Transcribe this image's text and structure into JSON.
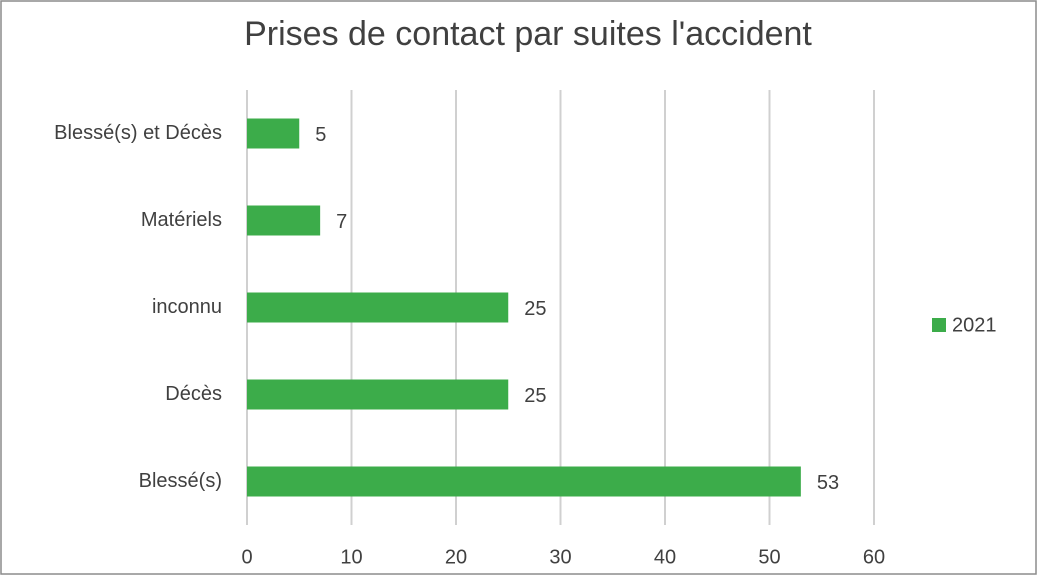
{
  "chart_data": {
    "type": "bar",
    "orientation": "horizontal",
    "title": "Prises de contact par suites l'accident",
    "categories": [
      "Blessé(s) et Décès",
      "Matériels",
      "inconnu",
      "Décès",
      "Blessé(s)"
    ],
    "series": [
      {
        "name": "2021",
        "color": "#3cac4a",
        "values": [
          5,
          7,
          25,
          25,
          53
        ]
      }
    ],
    "xlim": [
      0,
      60
    ],
    "xticks": [
      0,
      10,
      20,
      30,
      40,
      50,
      60
    ],
    "grid": true,
    "legend": "right"
  }
}
